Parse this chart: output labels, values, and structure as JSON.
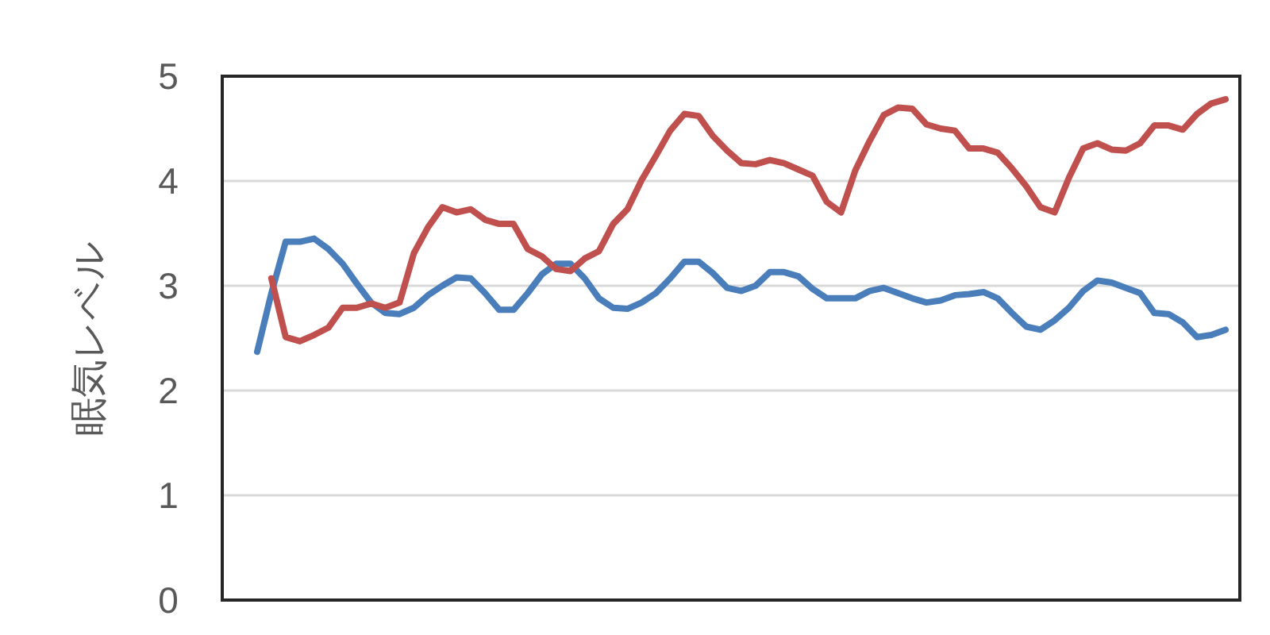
{
  "chart_data": {
    "type": "line",
    "ylabel": "眠気レベル",
    "categories": [
      null,
      null,
      null,
      null,
      null,
      null,
      null,
      null,
      null,
      null,
      null,
      null,
      null,
      null,
      null,
      null,
      null,
      null,
      null,
      null,
      null,
      null,
      null,
      null,
      null,
      null,
      null,
      null,
      null,
      null,
      null,
      null,
      null,
      null,
      null,
      null,
      null,
      null,
      null,
      null,
      null,
      null,
      null,
      null,
      null,
      null,
      null,
      null,
      null,
      null,
      null,
      null,
      null,
      null,
      null,
      null,
      null,
      null,
      null,
      null,
      null,
      null,
      null,
      null,
      null,
      null,
      null,
      null,
      null
    ],
    "ylim": [
      0,
      5
    ],
    "yticks": [
      0,
      1,
      2,
      3,
      4,
      5
    ],
    "grid": "y",
    "series": [
      {
        "color": "#4a7ebb",
        "values": [
          2.37,
          2.93,
          3.42,
          3.42,
          3.45,
          3.35,
          3.21,
          3.02,
          2.84,
          2.74,
          2.73,
          2.79,
          2.91,
          3.0,
          3.08,
          3.07,
          2.93,
          2.77,
          2.77,
          2.93,
          3.11,
          3.21,
          3.21,
          3.07,
          2.88,
          2.79,
          2.78,
          2.84,
          2.93,
          3.07,
          3.23,
          3.23,
          3.12,
          2.98,
          2.95,
          3.0,
          3.13,
          3.13,
          3.09,
          2.97,
          2.88,
          2.88,
          2.88,
          2.95,
          2.98,
          2.93,
          2.88,
          2.84,
          2.86,
          2.91,
          2.92,
          2.94,
          2.88,
          2.74,
          2.61,
          2.58,
          2.67,
          2.79,
          2.95,
          3.05,
          3.03,
          2.98,
          2.93,
          2.74,
          2.73,
          2.65,
          2.51,
          2.53,
          2.58
        ]
      },
      {
        "color": "#c0504d",
        "values": [
          null,
          3.07,
          2.51,
          2.47,
          2.53,
          2.6,
          2.79,
          2.79,
          2.83,
          2.79,
          2.84,
          3.31,
          3.56,
          3.75,
          3.7,
          3.73,
          3.63,
          3.59,
          3.59,
          3.35,
          3.28,
          3.16,
          3.14,
          3.26,
          3.33,
          3.59,
          3.73,
          4.01,
          4.24,
          4.48,
          4.64,
          4.62,
          4.43,
          4.29,
          4.17,
          4.16,
          4.2,
          4.17,
          4.11,
          4.05,
          3.8,
          3.7,
          4.1,
          4.38,
          4.63,
          4.7,
          4.69,
          4.54,
          4.5,
          4.48,
          4.31,
          4.31,
          4.27,
          4.12,
          3.95,
          3.75,
          3.7,
          4.03,
          4.31,
          4.36,
          4.3,
          4.29,
          4.36,
          4.53,
          4.53,
          4.49,
          4.64,
          4.74,
          4.78
        ]
      }
    ]
  }
}
